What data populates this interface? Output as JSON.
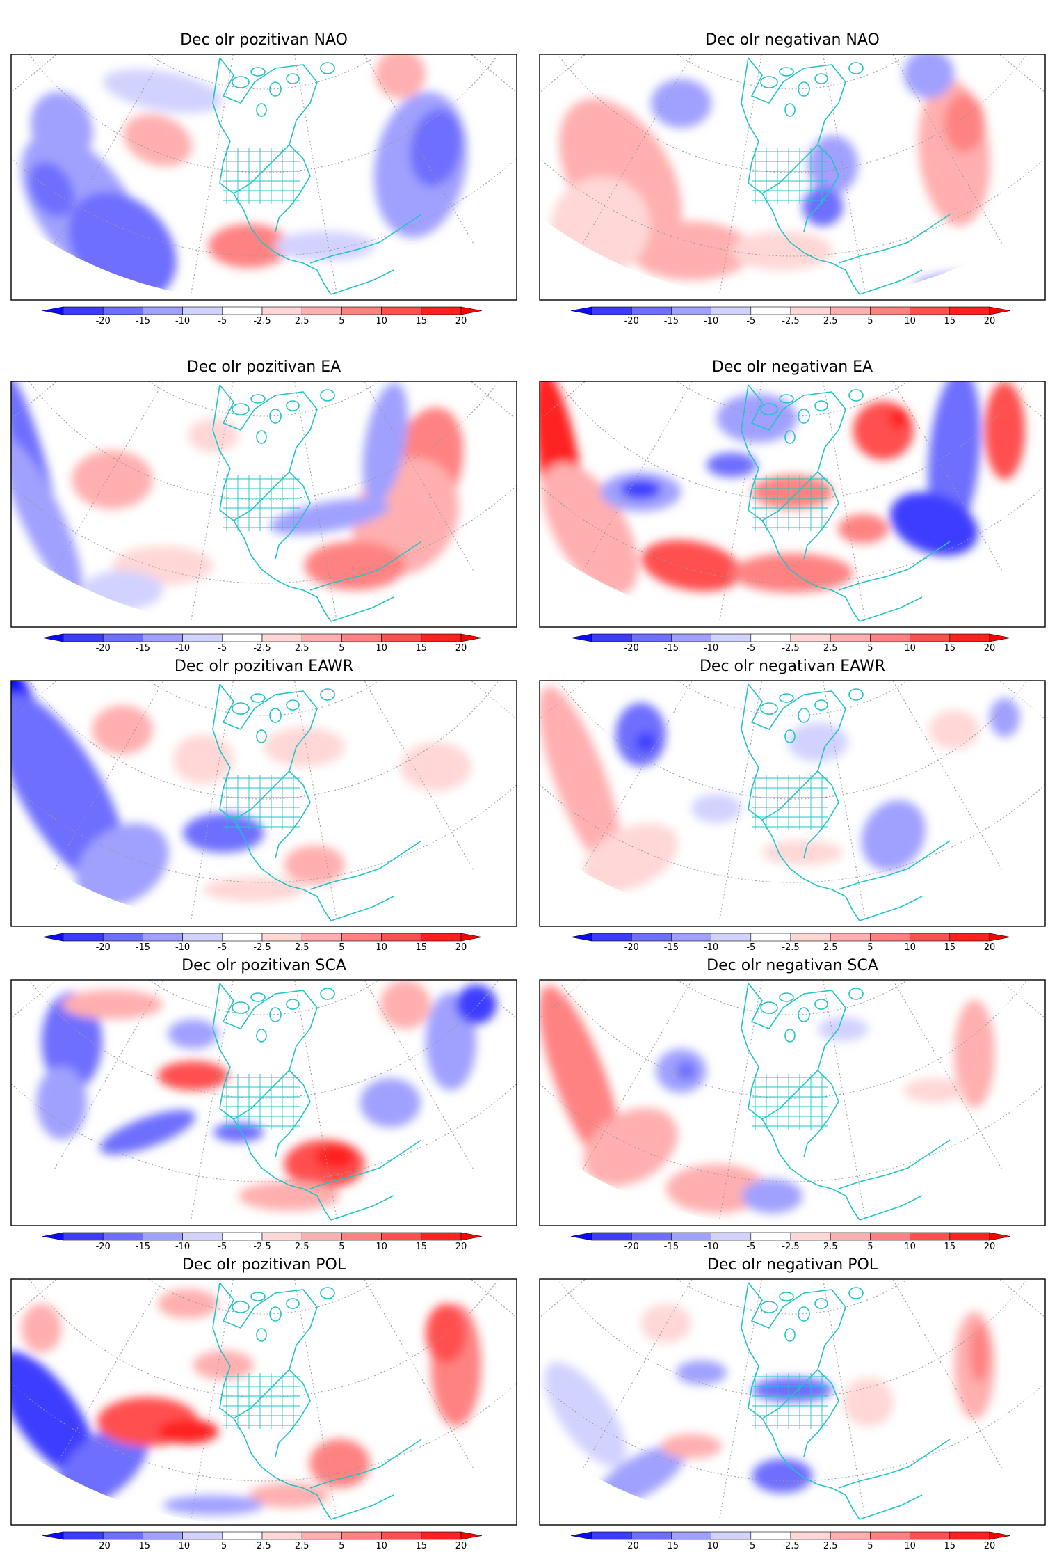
{
  "colorbar": {
    "ticks": [
      "-20",
      "-15",
      "-10",
      "-5",
      "-2.5",
      "2.5",
      "5",
      "10",
      "15",
      "20"
    ],
    "colors": [
      "#0a0aff",
      "#3c3cff",
      "#6e6eff",
      "#a0a0ff",
      "#d2d2ff",
      "#ffffff",
      "#ffd7d7",
      "#ffafaf",
      "#ff8282",
      "#ff5050",
      "#ff2020",
      "#ff0000"
    ]
  },
  "map_style": {
    "coast_color": "#22c4c4",
    "grid_color": "#9a9a9a",
    "frame_color": "#000000"
  },
  "panels": [
    {
      "title": "Dec olr pozitivan NAO",
      "season": "Dec",
      "variable": "olr",
      "phase": "pozitivan",
      "pattern": "NAO"
    },
    {
      "title": "Dec olr negativan NAO",
      "season": "Dec",
      "variable": "olr",
      "phase": "negativan",
      "pattern": "NAO"
    },
    {
      "title": "Dec olr pozitivan EA",
      "season": "Dec",
      "variable": "olr",
      "phase": "pozitivan",
      "pattern": "EA"
    },
    {
      "title": "Dec olr negativan EA",
      "season": "Dec",
      "variable": "olr",
      "phase": "negativan",
      "pattern": "EA"
    },
    {
      "title": "Dec olr pozitivan EAWR",
      "season": "Dec",
      "variable": "olr",
      "phase": "pozitivan",
      "pattern": "EAWR"
    },
    {
      "title": "Dec olr negativan EAWR",
      "season": "Dec",
      "variable": "olr",
      "phase": "negativan",
      "pattern": "EAWR"
    },
    {
      "title": "Dec olr pozitivan SCA",
      "season": "Dec",
      "variable": "olr",
      "phase": "pozitivan",
      "pattern": "SCA"
    },
    {
      "title": "Dec olr negativan SCA",
      "season": "Dec",
      "variable": "olr",
      "phase": "negativan",
      "pattern": "SCA"
    },
    {
      "title": "Dec olr pozitivan POL",
      "season": "Dec",
      "variable": "olr",
      "phase": "pozitivan",
      "pattern": "POL"
    },
    {
      "title": "Dec olr negativan POL",
      "season": "Dec",
      "variable": "olr",
      "phase": "negativan",
      "pattern": "POL"
    }
  ]
}
